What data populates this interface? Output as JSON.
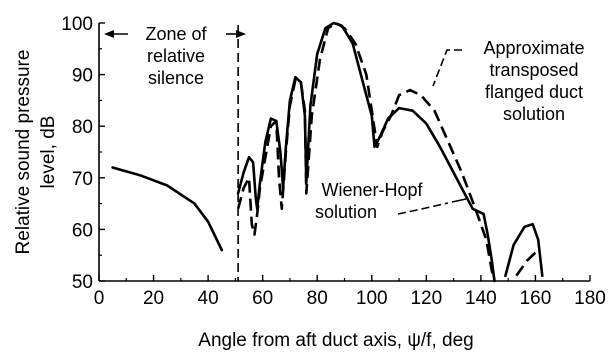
{
  "chart_data": {
    "type": "line",
    "xlabel": "Angle from aft duct axis, ψ/f, deg",
    "ylabel_line1": "Relative sound pressure",
    "ylabel_line2": "level, dB",
    "xlim": [
      0,
      180
    ],
    "ylim": [
      50,
      100
    ],
    "x_ticks": [
      "0",
      "20",
      "40",
      "60",
      "80",
      "100",
      "120",
      "140",
      "160",
      "180"
    ],
    "y_ticks": [
      "50",
      "60",
      "70",
      "80",
      "90",
      "100"
    ],
    "grid": false,
    "boundary_x": 51,
    "annotations": {
      "zone_line1": "Zone of",
      "zone_line2": "relative",
      "zone_line3": "silence",
      "approx_line1": "Approximate",
      "approx_line2": "transposed",
      "approx_line3": "flanged duct",
      "approx_line4": "solution",
      "wh_line1": "Wiener-Hopf",
      "wh_line2": "solution"
    },
    "series": [
      {
        "style": "solid",
        "segments": [
          [
            [
              5,
              72
            ],
            [
              15,
              70.5
            ],
            [
              25,
              68.5
            ],
            [
              35,
              65
            ],
            [
              40,
              61.5
            ],
            [
              45,
              56
            ]
          ],
          [
            [
              51,
              67
            ],
            [
              53,
              71
            ],
            [
              55,
              74
            ],
            [
              56.5,
              73
            ],
            [
              57.5,
              66
            ],
            [
              58,
              64
            ],
            [
              59,
              69
            ],
            [
              61,
              77
            ],
            [
              63,
              81.5
            ],
            [
              65,
              81
            ],
            [
              66.5,
              75
            ],
            [
              67.5,
              68
            ],
            [
              68.5,
              76
            ],
            [
              70,
              85
            ],
            [
              72,
              89.5
            ],
            [
              74,
              88.5
            ],
            [
              75.5,
              82
            ],
            [
              76,
              69
            ],
            [
              77.5,
              84
            ],
            [
              80,
              94
            ],
            [
              83,
              99
            ],
            [
              86,
              100
            ],
            [
              89,
              99.5
            ],
            [
              93,
              96
            ],
            [
              97,
              88
            ],
            [
              100,
              82
            ],
            [
              101,
              76
            ],
            [
              103,
              78
            ],
            [
              106,
              81.5
            ],
            [
              110,
              83.5
            ],
            [
              115,
              83
            ],
            [
              120,
              80.5
            ],
            [
              125,
              76
            ],
            [
              130,
              71
            ],
            [
              134,
              67
            ],
            [
              137,
              64
            ],
            [
              141,
              63
            ],
            [
              142.5,
              59
            ],
            [
              144,
              54
            ],
            [
              145,
              50
            ]
          ],
          [
            [
              149,
              51
            ],
            [
              152,
              57
            ],
            [
              156,
              60.5
            ],
            [
              159,
              61
            ],
            [
              161,
              58
            ],
            [
              162.5,
              51
            ]
          ]
        ]
      },
      {
        "style": "dashed",
        "segments": [
          [
            [
              51,
              64
            ],
            [
              53,
              68
            ],
            [
              55,
              70
            ],
            [
              56,
              61
            ],
            [
              57,
              59
            ],
            [
              58,
              63
            ],
            [
              59,
              68
            ],
            [
              61,
              74
            ],
            [
              63,
              80
            ],
            [
              65,
              81
            ],
            [
              66,
              70
            ],
            [
              67,
              64
            ],
            [
              68.5,
              75
            ],
            [
              70,
              84
            ],
            [
              72,
              89
            ],
            [
              74,
              88.5
            ],
            [
              75.5,
              83
            ],
            [
              76,
              67
            ],
            [
              78,
              82
            ],
            [
              81,
              93
            ],
            [
              84,
              99
            ],
            [
              87,
              100
            ],
            [
              90,
              99
            ],
            [
              94,
              96
            ],
            [
              98,
              90
            ],
            [
              100,
              83
            ],
            [
              102,
              76
            ],
            [
              104,
              79
            ],
            [
              107,
              82
            ],
            [
              110,
              86
            ],
            [
              114,
              87
            ],
            [
              118,
              86
            ],
            [
              123,
              83
            ],
            [
              128,
              77
            ],
            [
              133,
              71
            ],
            [
              138,
              64
            ],
            [
              142,
              58
            ],
            [
              144,
              52
            ],
            [
              145,
              50
            ]
          ],
          [
            [
              153,
              51
            ],
            [
              157,
              54
            ],
            [
              160,
              55.5
            ]
          ]
        ]
      }
    ]
  }
}
